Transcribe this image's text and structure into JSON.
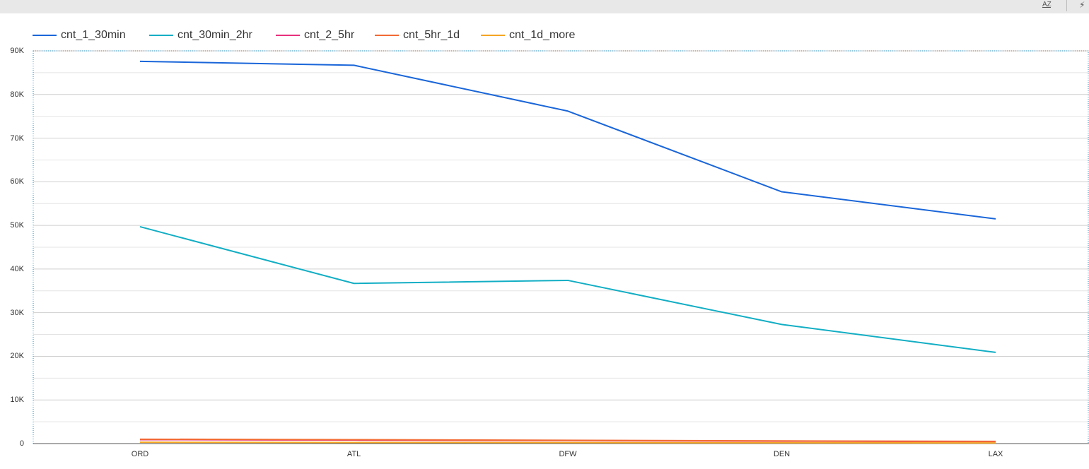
{
  "toolbar": {
    "sort_icon": "sort-az-icon",
    "sort_label": "AZ",
    "action_icon": "lightning-icon",
    "action_glyph": "⚡"
  },
  "chart_data": {
    "type": "line",
    "categories": [
      "ORD",
      "ATL",
      "DFW",
      "DEN",
      "LAX"
    ],
    "ylim": [
      0,
      90000
    ],
    "yticks": [
      0,
      10000,
      20000,
      30000,
      40000,
      50000,
      60000,
      70000,
      80000,
      90000
    ],
    "ytick_labels": [
      "0",
      "10K",
      "20K",
      "30K",
      "40K",
      "50K",
      "60K",
      "70K",
      "80K",
      "90K"
    ],
    "grid": true,
    "legend_position": "top",
    "series": [
      {
        "name": "cnt_1_30min",
        "color": "#1a66d9",
        "values": [
          87600,
          86700,
          76200,
          57700,
          51500
        ]
      },
      {
        "name": "cnt_30min_2hr",
        "color": "#12aec4",
        "values": [
          49700,
          36700,
          37400,
          27300,
          20900
        ]
      },
      {
        "name": "cnt_2_5hr",
        "color": "#e8317e",
        "values": [
          900,
          800,
          700,
          550,
          450
        ]
      },
      {
        "name": "cnt_5hr_1d",
        "color": "#f26a34",
        "values": [
          1000,
          900,
          750,
          600,
          500
        ]
      },
      {
        "name": "cnt_1d_more",
        "color": "#f5a623",
        "values": [
          300,
          250,
          220,
          180,
          150
        ]
      }
    ]
  }
}
